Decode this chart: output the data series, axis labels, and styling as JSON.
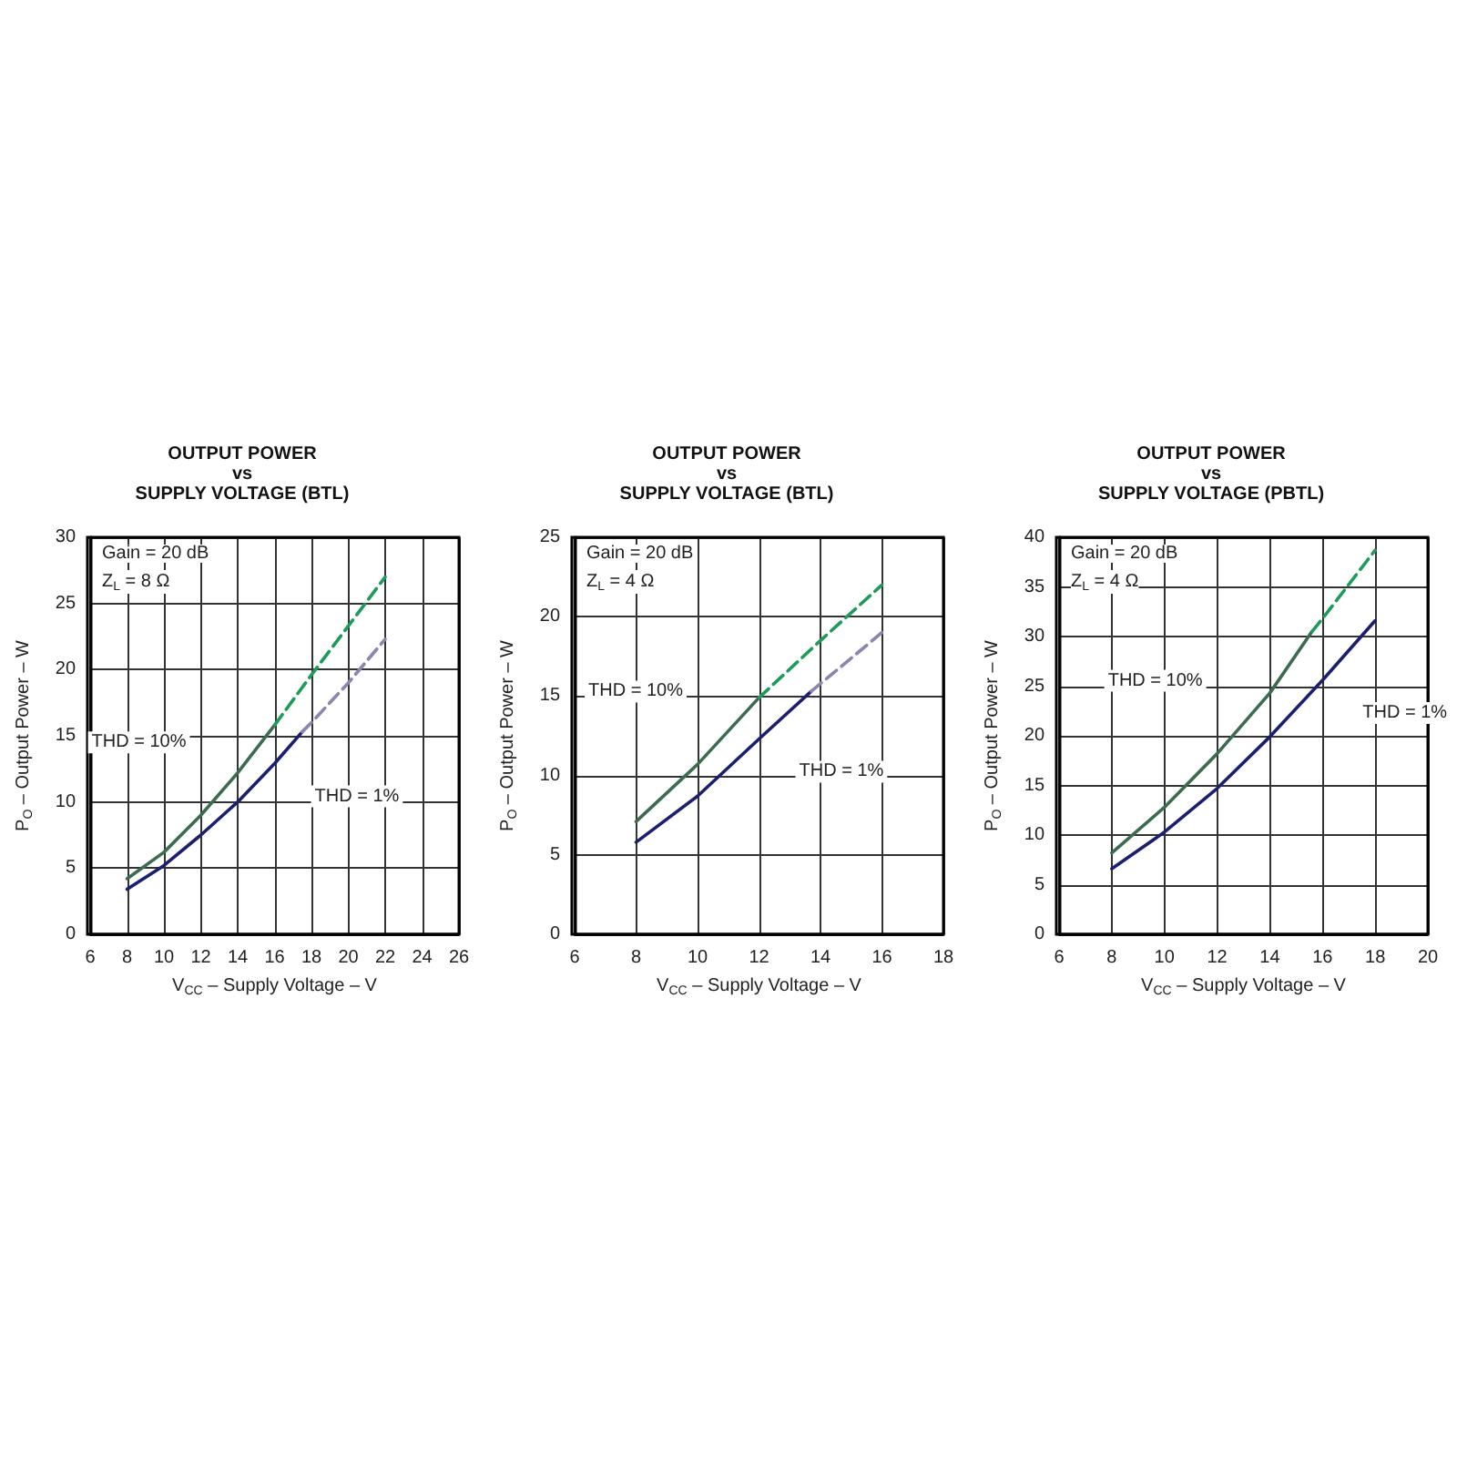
{
  "chart_data": [
    {
      "type": "line",
      "title": "OUTPUT POWER\nvs\nSUPPLY VOLTAGE (BTL)",
      "xlabel": "V$_{CC}$ – Supply Voltage – V",
      "ylabel": "P$_{O}$ – Output Power – W",
      "xlim": [
        6,
        26
      ],
      "xticks": [
        6,
        8,
        10,
        12,
        14,
        16,
        18,
        20,
        22,
        24,
        26
      ],
      "ylim": [
        0,
        30
      ],
      "yticks": [
        0,
        5,
        10,
        15,
        20,
        25,
        30
      ],
      "grid": true,
      "marker": "none",
      "annotations": [
        "Gain = 20 dB",
        "Z$_{L}$ = 8 Ω"
      ],
      "series": [
        {
          "name": "THD = 10%",
          "color": "#3d6b50",
          "line_style": "solid",
          "x": [
            8,
            10,
            12,
            14,
            16
          ],
          "values": [
            4.2,
            6.2,
            9,
            12.2,
            15.8
          ]
        },
        {
          "color": "#1e9a5a",
          "line_style": "dashed",
          "x": [
            16,
            18,
            20,
            22
          ],
          "values": [
            15.8,
            19.6,
            23.3,
            27
          ]
        },
        {
          "name": "THD = 1%",
          "color": "#1c1f6e",
          "line_style": "solid",
          "x": [
            8,
            10,
            12,
            14,
            16,
            17.5
          ],
          "values": [
            3.4,
            5.2,
            7.5,
            10,
            12.9,
            15.3
          ]
        },
        {
          "color": "#8a86b0",
          "line_style": "dashed",
          "x": [
            17.5,
            18,
            20,
            22
          ],
          "values": [
            15.3,
            16,
            19,
            22.3
          ]
        }
      ]
    },
    {
      "type": "line",
      "title": "OUTPUT POWER\nvs\nSUPPLY VOLTAGE (BTL)",
      "xlabel": "V$_{CC}$ – Supply Voltage – V",
      "ylabel": "P$_{O}$ – Output Power – W",
      "xlim": [
        6,
        18
      ],
      "xticks": [
        6,
        8,
        10,
        12,
        14,
        16,
        18
      ],
      "ylim": [
        0,
        25
      ],
      "yticks": [
        0,
        5,
        10,
        15,
        20,
        25
      ],
      "grid": true,
      "marker": "none",
      "annotations": [
        "Gain = 20 dB",
        "Z$_{L}$ = 4 Ω"
      ],
      "series": [
        {
          "name": "THD = 10%",
          "color": "#3d6b50",
          "line_style": "solid",
          "x": [
            8,
            10,
            12
          ],
          "values": [
            7.1,
            10.7,
            14.9
          ]
        },
        {
          "color": "#1e9a5a",
          "line_style": "dashed",
          "x": [
            12,
            14,
            16
          ],
          "values": [
            14.9,
            18.5,
            22
          ]
        },
        {
          "name": "THD = 1%",
          "color": "#1c1f6e",
          "line_style": "solid",
          "x": [
            8,
            10,
            12,
            13.7
          ],
          "values": [
            5.8,
            8.7,
            12.3,
            15.3
          ]
        },
        {
          "color": "#8a86b0",
          "line_style": "dashed",
          "x": [
            13.7,
            16
          ],
          "values": [
            15.3,
            19
          ]
        }
      ]
    },
    {
      "type": "line",
      "title": "OUTPUT POWER\nvs\nSUPPLY VOLTAGE (PBTL)",
      "xlabel": "V$_{CC}$ – Supply Voltage – V",
      "ylabel": "P$_{O}$ – Output Power – W",
      "xlim": [
        6,
        20
      ],
      "xticks": [
        6,
        8,
        10,
        12,
        14,
        16,
        18,
        20
      ],
      "ylim": [
        0,
        40
      ],
      "yticks": [
        0,
        5,
        10,
        15,
        20,
        25,
        30,
        35,
        40
      ],
      "grid": true,
      "marker": "none",
      "annotations": [
        "Gain = 20 dB",
        "Z$_{L}$ = 4 Ω"
      ],
      "series": [
        {
          "name": "THD = 10%",
          "color": "#3d6b50",
          "line_style": "solid",
          "x": [
            8,
            10,
            12,
            14,
            15.6
          ],
          "values": [
            8.2,
            12.8,
            18.2,
            24.3,
            30.5
          ]
        },
        {
          "color": "#1e9a5a",
          "line_style": "dashed",
          "x": [
            15.6,
            16,
            18
          ],
          "values": [
            30.5,
            31.8,
            38.7
          ]
        },
        {
          "name": "THD = 1%",
          "color": "#1c1f6e",
          "line_style": "solid",
          "x": [
            8,
            10,
            12,
            14,
            16,
            18
          ],
          "values": [
            6.6,
            10.3,
            14.7,
            19.9,
            25.6,
            31.6
          ]
        }
      ]
    }
  ]
}
